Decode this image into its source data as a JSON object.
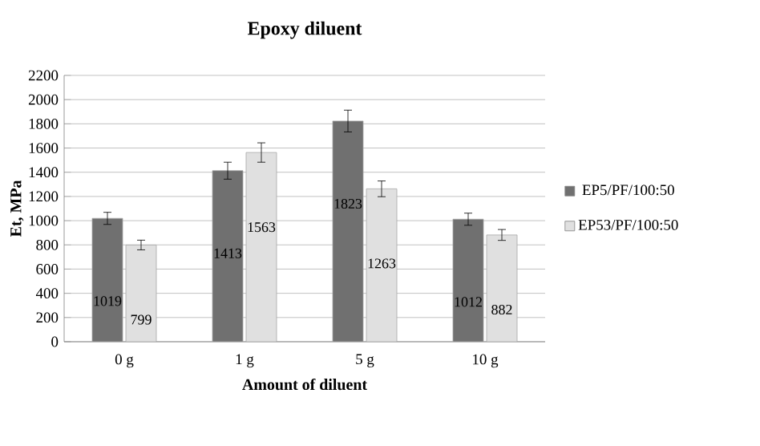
{
  "chart_data": {
    "type": "bar",
    "title": "Epoxy diluent",
    "xlabel": "Amount of diluent",
    "ylabel": "Et, MPa",
    "categories": [
      "0 g",
      "1 g",
      "5 g",
      "10 g"
    ],
    "series": [
      {
        "name": "EP5/PF/100:50",
        "color": "#707070",
        "values": [
          1019,
          1413,
          1823,
          1012
        ],
        "errors": [
          50,
          70,
          90,
          50
        ]
      },
      {
        "name": "EP53/PF/100:50",
        "color": "#e0e0e0",
        "values": [
          799,
          1563,
          1263,
          882
        ],
        "errors": [
          40,
          80,
          65,
          45
        ]
      }
    ],
    "ylim": [
      0,
      2200
    ],
    "yticks": [
      0,
      200,
      400,
      600,
      800,
      1000,
      1200,
      1400,
      1600,
      1800,
      2000,
      2200
    ],
    "grid": "y",
    "legend": "right",
    "data_labels": true
  }
}
